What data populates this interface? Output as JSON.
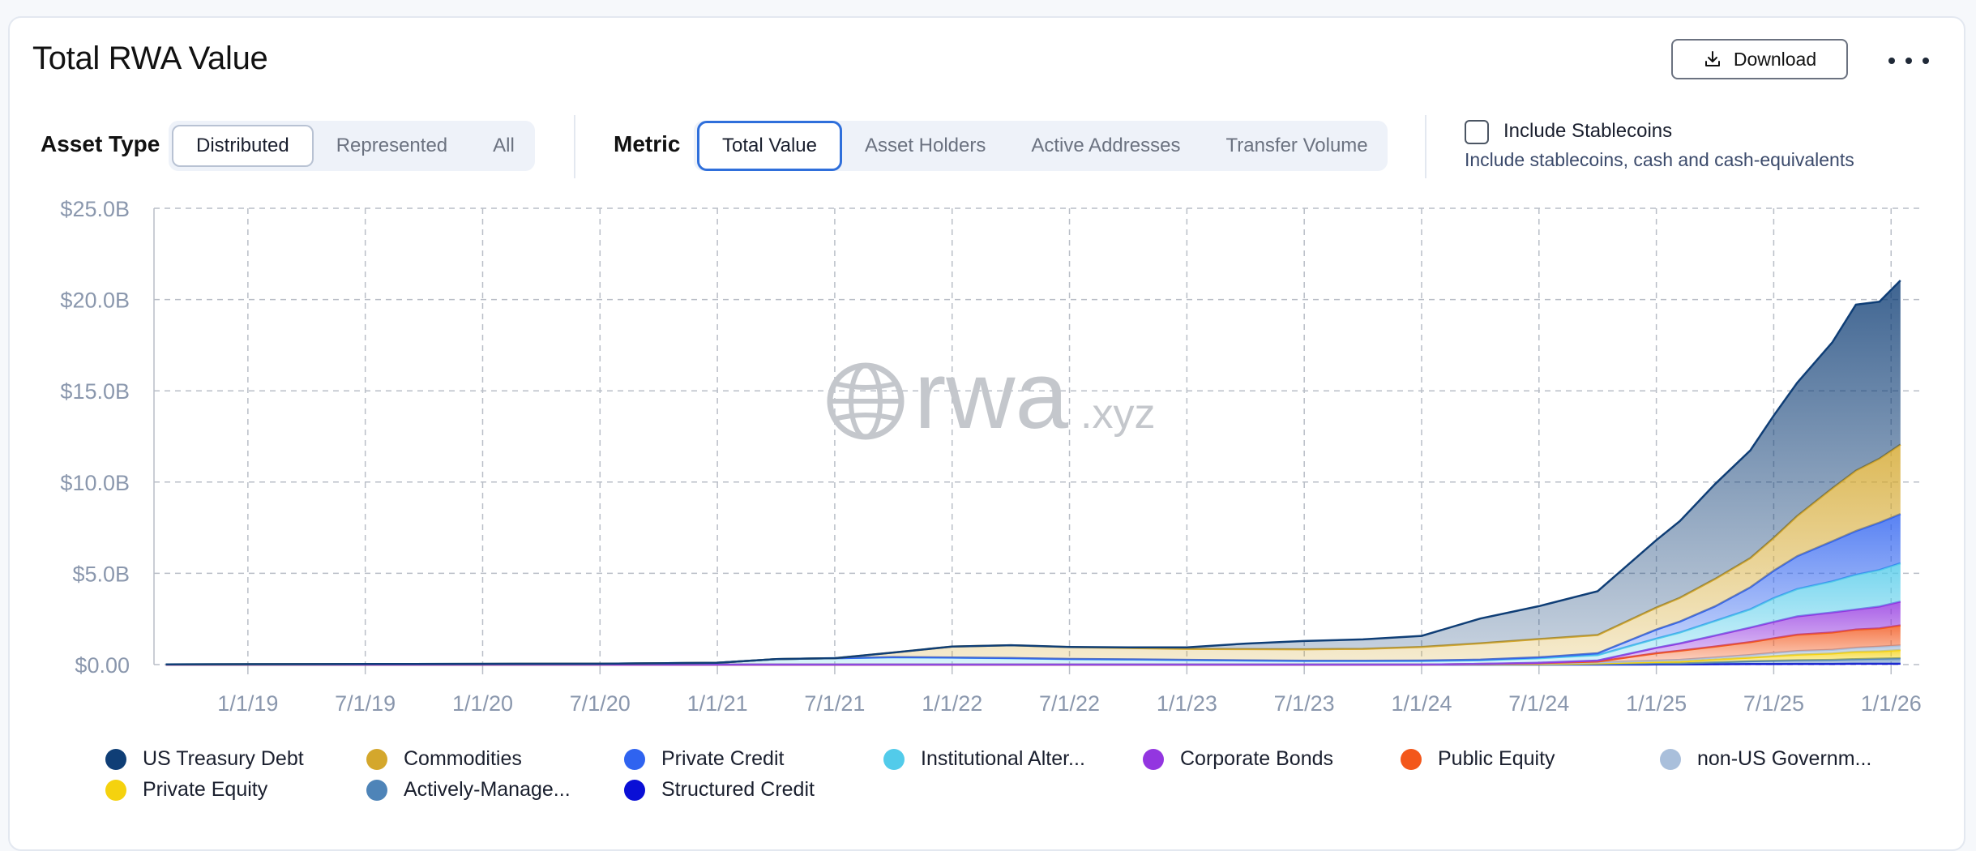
{
  "header": {
    "title": "Total RWA Value",
    "download_label": "Download",
    "more_icon": "more-horizontal-icon",
    "download_icon": "download-icon"
  },
  "filters": {
    "asset_type": {
      "label": "Asset Type",
      "options": [
        "Distributed",
        "Represented",
        "All"
      ],
      "selected": "Distributed"
    },
    "metric": {
      "label": "Metric",
      "options": [
        "Total Value",
        "Asset Holders",
        "Active Addresses",
        "Transfer Volume"
      ],
      "selected": "Total Value"
    },
    "stablecoins": {
      "label": "Include Stablecoins",
      "description": "Include stablecoins, cash and cash-equivalents",
      "checked": false
    }
  },
  "watermark": {
    "brand": "rwa",
    "suffix": ".xyz",
    "icon": "globe-icon"
  },
  "chart_data": {
    "type": "area",
    "stacked": true,
    "title": "Total RWA Value",
    "xlabel": "",
    "ylabel": "",
    "y_ticks": [
      "$0.00",
      "$5.0B",
      "$10.0B",
      "$15.0B",
      "$20.0B",
      "$25.0B"
    ],
    "ylim": [
      0,
      25
    ],
    "x_ticks": [
      "1/1/19",
      "7/1/19",
      "1/1/20",
      "7/1/20",
      "1/1/21",
      "7/1/21",
      "1/1/22",
      "7/1/22",
      "1/1/23",
      "7/1/23",
      "1/1/24",
      "7/1/24",
      "1/1/25",
      "7/1/25",
      "1/1/26"
    ],
    "xlim": [
      2018.6,
      2026.12
    ],
    "grid": true,
    "legend_position": "bottom",
    "x": [
      2018.65,
      2019.0,
      2019.5,
      2020.0,
      2020.5,
      2021.0,
      2021.25,
      2021.5,
      2021.75,
      2022.0,
      2022.25,
      2022.5,
      2022.75,
      2023.0,
      2023.25,
      2023.5,
      2023.75,
      2024.0,
      2024.25,
      2024.5,
      2024.75,
      2025.0,
      2025.1,
      2025.25,
      2025.4,
      2025.5,
      2025.6,
      2025.75,
      2025.85,
      2025.95,
      2026.04
    ],
    "series": [
      {
        "name": "Structured Credit",
        "color": "#0a0fd6",
        "values": [
          0,
          0,
          0,
          0,
          0,
          0,
          0,
          0,
          0,
          0,
          0,
          0,
          0,
          0,
          0,
          0,
          0,
          0,
          0,
          0,
          0,
          0.01,
          0.01,
          0.02,
          0.03,
          0.03,
          0.04,
          0.04,
          0.05,
          0.05,
          0.05
        ]
      },
      {
        "name": "Actively-Manage...",
        "color": "#4e84b8",
        "values": [
          0,
          0,
          0,
          0,
          0,
          0,
          0,
          0,
          0,
          0,
          0,
          0,
          0,
          0,
          0,
          0,
          0,
          0,
          0,
          0,
          0.02,
          0.05,
          0.05,
          0.1,
          0.15,
          0.18,
          0.2,
          0.22,
          0.25,
          0.28,
          0.3
        ]
      },
      {
        "name": "Private Equity",
        "color": "#f5d20e",
        "values": [
          0,
          0,
          0,
          0,
          0,
          0,
          0,
          0,
          0,
          0,
          0,
          0,
          0,
          0,
          0,
          0,
          0,
          0,
          0.02,
          0.03,
          0.05,
          0.08,
          0.1,
          0.15,
          0.2,
          0.25,
          0.3,
          0.35,
          0.4,
          0.4,
          0.45
        ]
      },
      {
        "name": "non-US Governm...",
        "color": "#a9bfdb",
        "values": [
          0,
          0,
          0,
          0,
          0,
          0,
          0,
          0,
          0,
          0,
          0,
          0,
          0,
          0,
          0,
          0,
          0,
          0,
          0.02,
          0.03,
          0.05,
          0.08,
          0.1,
          0.12,
          0.15,
          0.18,
          0.2,
          0.2,
          0.22,
          0.25,
          0.25
        ]
      },
      {
        "name": "Public Equity",
        "color": "#f3571b",
        "values": [
          0,
          0,
          0,
          0,
          0,
          0,
          0,
          0,
          0,
          0,
          0,
          0,
          0,
          0,
          0,
          0,
          0,
          0,
          0,
          0.02,
          0.05,
          0.4,
          0.5,
          0.6,
          0.7,
          0.8,
          0.9,
          0.95,
          1.0,
          1.0,
          1.1
        ]
      },
      {
        "name": "Corporate Bonds",
        "color": "#9336e0",
        "values": [
          0,
          0,
          0,
          0,
          0,
          0,
          0,
          0,
          0,
          0,
          0,
          0,
          0,
          0,
          0,
          0,
          0,
          0,
          0,
          0.02,
          0.05,
          0.3,
          0.4,
          0.6,
          0.8,
          0.9,
          1.0,
          1.1,
          1.1,
          1.2,
          1.3
        ]
      },
      {
        "name": "Institutional Alter...",
        "color": "#52cbea",
        "values": [
          0.01,
          0.02,
          0.03,
          0.04,
          0.05,
          0.1,
          0.3,
          0.35,
          0.4,
          0.38,
          0.35,
          0.3,
          0.28,
          0.25,
          0.22,
          0.2,
          0.2,
          0.2,
          0.2,
          0.25,
          0.3,
          0.5,
          0.6,
          0.8,
          1.0,
          1.3,
          1.5,
          1.7,
          1.9,
          2.0,
          2.1
        ]
      },
      {
        "name": "Private Credit",
        "color": "#2f63f0",
        "values": [
          0,
          0,
          0,
          0,
          0,
          0,
          0,
          0,
          0.01,
          0.01,
          0.01,
          0.01,
          0.01,
          0.01,
          0.01,
          0.01,
          0.01,
          0.02,
          0.03,
          0.05,
          0.1,
          0.5,
          0.6,
          0.8,
          1.2,
          1.5,
          1.8,
          2.2,
          2.4,
          2.6,
          2.7
        ]
      },
      {
        "name": "Commodities",
        "color": "#d4a72c",
        "values": [
          0,
          0,
          0,
          0,
          0,
          0,
          0,
          0,
          0.25,
          0.6,
          0.7,
          0.65,
          0.62,
          0.6,
          0.62,
          0.63,
          0.65,
          0.75,
          0.9,
          1.0,
          1.0,
          1.2,
          1.3,
          1.5,
          1.6,
          1.8,
          2.2,
          2.9,
          3.3,
          3.5,
          3.8
        ]
      },
      {
        "name": "US Treasury Debt",
        "color": "#0f3e76",
        "values": [
          0,
          0,
          0,
          0,
          0,
          0,
          0,
          0,
          0,
          0,
          0,
          0.01,
          0.03,
          0.08,
          0.3,
          0.45,
          0.52,
          0.6,
          1.35,
          1.8,
          2.4,
          3.7,
          4.2,
          5.2,
          5.9,
          6.7,
          7.3,
          8.0,
          9.1,
          8.6,
          9.0
        ]
      }
    ]
  },
  "legend_order": [
    "US Treasury Debt",
    "Commodities",
    "Private Credit",
    "Institutional Alter...",
    "Corporate Bonds",
    "Public Equity",
    "non-US Governm...",
    "Private Equity",
    "Actively-Manage...",
    "Structured Credit"
  ]
}
